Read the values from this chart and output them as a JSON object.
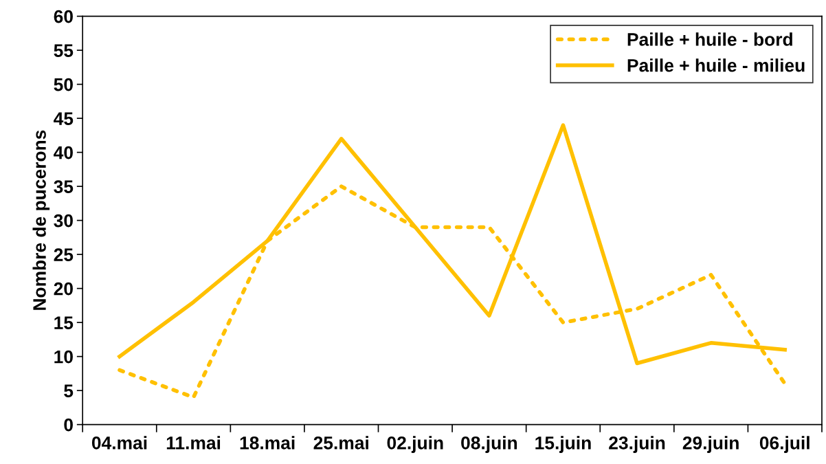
{
  "chart_data": {
    "type": "line",
    "ylabel": "Nombre de pucerons",
    "categories": [
      "04.mai",
      "11.mai",
      "18.mai",
      "25.mai",
      "02.juin",
      "08.juin",
      "15.juin",
      "23.juin",
      "29.juin",
      "06.juil"
    ],
    "series": [
      {
        "name": "Paille + huile - bord",
        "color": "#ffc000",
        "line_style": "dotted",
        "values": [
          8,
          4,
          27,
          35,
          29,
          29,
          15,
          17,
          22,
          6
        ]
      },
      {
        "name": "Paille + huile - milieu",
        "color": "#ffc000",
        "line_style": "solid",
        "values": [
          10,
          18,
          27,
          42,
          29,
          16,
          44,
          9,
          12,
          11
        ]
      }
    ],
    "ylim": [
      0,
      60
    ],
    "yticks": [
      0,
      5,
      10,
      15,
      20,
      25,
      30,
      35,
      40,
      45,
      50,
      55,
      60
    ],
    "legend": "top right",
    "grid": false,
    "marker": "none"
  }
}
